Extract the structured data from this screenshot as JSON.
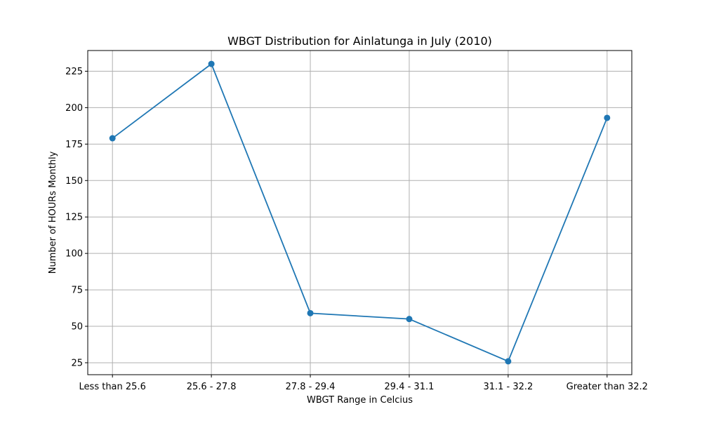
{
  "chart_data": {
    "type": "line",
    "title": "WBGT Distribution for Ainlatunga in July (2010)",
    "xlabel": "WBGT Range in Celcius",
    "ylabel": "Number of HOURs Monthly",
    "categories": [
      "Less than 25.6",
      "25.6 - 27.8",
      "27.8 - 29.4",
      "29.4 - 31.1",
      "31.1 - 32.2",
      "Greater than 32.2"
    ],
    "series": [
      {
        "values": [
          179,
          230,
          59,
          55,
          26,
          193
        ],
        "color": "#1f77b4",
        "marker": "circle"
      }
    ],
    "yticks": [
      25,
      50,
      75,
      100,
      125,
      150,
      175,
      200,
      225
    ],
    "ylim": [
      16.8,
      239.2
    ],
    "grid": true
  }
}
